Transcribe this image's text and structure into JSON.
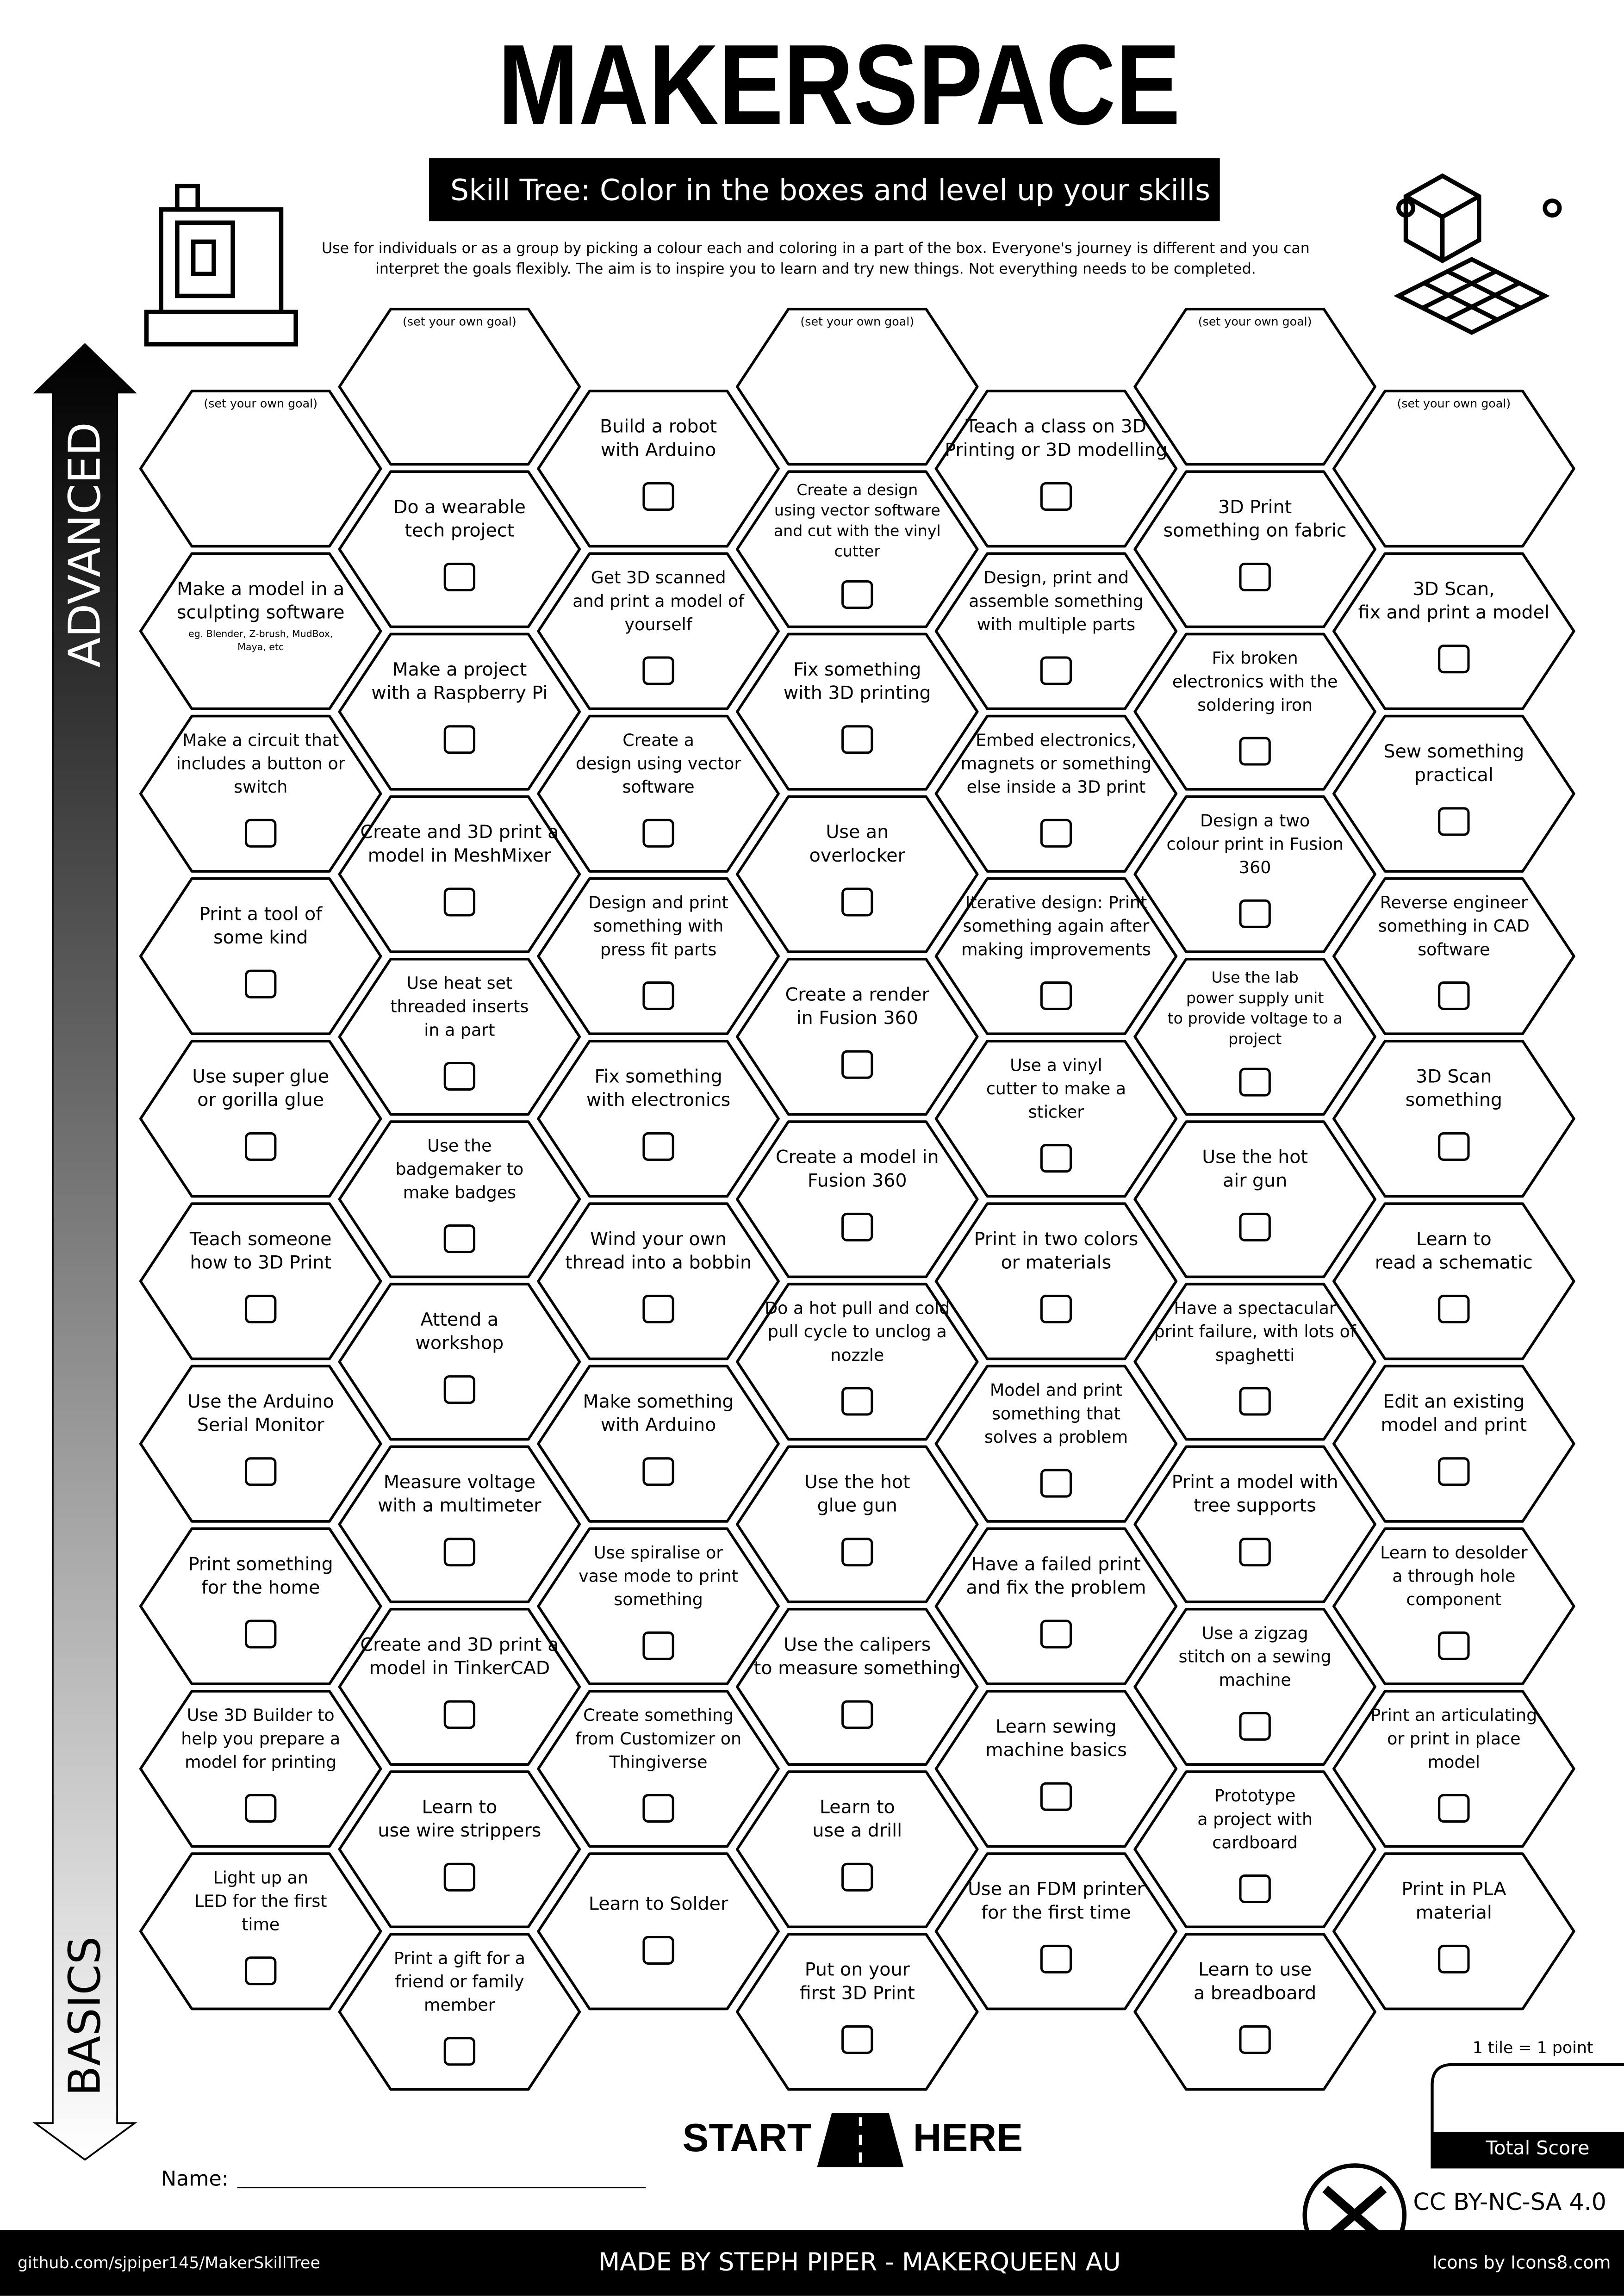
{
  "header": {
    "title": "MAKERSPACE",
    "subtitle": "Skill Tree:  Color in the boxes and level up your skills",
    "intro": [
      "Use for individuals or as a group by picking a colour each and coloring in a part of the box.  Everyone's journey is different and you can",
      "interpret the goals flexibly.  The aim is to inspire you to learn and try new things. Not everything needs to be completed."
    ]
  },
  "axis": {
    "top": "ADVANCED",
    "bottom": "BASICS"
  },
  "columns": [
    [
      {
        "note": [
          "(set your own goal)"
        ]
      },
      {
        "lines": [
          "Make a model in a",
          "sculpting software"
        ],
        "note": [
          "eg. Blender, Z-brush, MudBox,",
          "Maya, etc"
        ]
      },
      {
        "lines": [
          "Make a circuit that",
          "includes a button or",
          "switch"
        ]
      },
      {
        "lines": [
          "Print a tool of",
          "some kind"
        ]
      },
      {
        "lines": [
          "Use super glue",
          "or gorilla glue"
        ]
      },
      {
        "lines": [
          "Teach someone",
          "how to 3D Print"
        ]
      },
      {
        "lines": [
          "Use the Arduino",
          "Serial Monitor"
        ]
      },
      {
        "lines": [
          "Print something",
          "for the home"
        ]
      },
      {
        "lines": [
          "Use 3D Builder to",
          "help you prepare a",
          "model for printing"
        ]
      },
      {
        "lines": [
          "Light up an",
          "LED for the first",
          "time"
        ]
      }
    ],
    [
      {
        "note": [
          "(set your own goal)"
        ]
      },
      {
        "lines": [
          "Do a wearable",
          "tech project"
        ]
      },
      {
        "lines": [
          "Make a project",
          "with a Raspberry Pi"
        ]
      },
      {
        "lines": [
          "Create and 3D print a",
          "model in MeshMixer"
        ]
      },
      {
        "lines": [
          "Use heat set",
          "threaded inserts",
          "in a part"
        ]
      },
      {
        "lines": [
          "Use the",
          "badgemaker to",
          "make badges"
        ]
      },
      {
        "lines": [
          "Attend a",
          "workshop"
        ]
      },
      {
        "lines": [
          "Measure voltage",
          "with a multimeter"
        ]
      },
      {
        "lines": [
          "Create and 3D print a",
          "model in TinkerCAD"
        ]
      },
      {
        "lines": [
          "Learn to",
          "use wire strippers"
        ]
      },
      {
        "lines": [
          "Print a gift for a",
          "friend or family",
          "member"
        ]
      }
    ],
    [
      {
        "lines": [
          "Build a robot",
          "with Arduino"
        ]
      },
      {
        "lines": [
          "Get 3D scanned",
          "and print a model of",
          "yourself"
        ]
      },
      {
        "lines": [
          "Create a",
          "design  using vector",
          "software"
        ]
      },
      {
        "lines": [
          "Design and print",
          "something with",
          "press fit parts"
        ]
      },
      {
        "lines": [
          "Fix something",
          "with electronics"
        ]
      },
      {
        "lines": [
          "Wind your own",
          "thread into a bobbin"
        ]
      },
      {
        "lines": [
          "Make something",
          "with Arduino"
        ]
      },
      {
        "lines": [
          "Use spiralise or",
          "vase mode to print",
          "something"
        ]
      },
      {
        "lines": [
          "Create something",
          "from Customizer on",
          "Thingiverse"
        ]
      },
      {
        "lines": [
          "Learn to Solder"
        ]
      }
    ],
    [
      {
        "note": [
          "(set your own goal)"
        ]
      },
      {
        "lines": [
          "Create a  design",
          "using vector software",
          "and cut with the vinyl",
          "cutter"
        ]
      },
      {
        "lines": [
          "Fix something",
          "with 3D printing"
        ]
      },
      {
        "lines": [
          "Use an",
          "overlocker"
        ]
      },
      {
        "lines": [
          "Create a render",
          "in Fusion 360"
        ]
      },
      {
        "lines": [
          "Create a model in",
          "Fusion 360"
        ]
      },
      {
        "lines": [
          "Do a hot pull and cold",
          "pull cycle to unclog a",
          "nozzle"
        ]
      },
      {
        "lines": [
          "Use the hot",
          "glue gun"
        ]
      },
      {
        "lines": [
          "Use the calipers",
          "to measure something"
        ]
      },
      {
        "lines": [
          "Learn to",
          "use a drill"
        ]
      },
      {
        "lines": [
          "Put on your",
          "first 3D Print"
        ]
      }
    ],
    [
      {
        "lines": [
          "Teach a class on 3D",
          "Printing or 3D modelling"
        ]
      },
      {
        "lines": [
          "Design, print and",
          "assemble something",
          "with multiple parts"
        ]
      },
      {
        "lines": [
          "Embed electronics,",
          "magnets or something",
          "else inside a 3D print"
        ]
      },
      {
        "lines": [
          "Iterative design: Print",
          "something again after",
          "making improvements"
        ]
      },
      {
        "lines": [
          "Use a vinyl",
          "cutter to make a",
          "sticker"
        ]
      },
      {
        "lines": [
          "Print in two colors",
          "or materials"
        ]
      },
      {
        "lines": [
          "Model and print",
          "something that",
          "solves a problem"
        ]
      },
      {
        "lines": [
          "Have a failed print",
          "and fix the problem"
        ]
      },
      {
        "lines": [
          "Learn sewing",
          "machine basics"
        ]
      },
      {
        "lines": [
          "Use an FDM printer",
          "for the first time"
        ]
      }
    ],
    [
      {
        "note": [
          "(set your own goal)"
        ]
      },
      {
        "lines": [
          "3D Print",
          "something on fabric"
        ]
      },
      {
        "lines": [
          "Fix broken",
          "electronics with the",
          "soldering iron"
        ]
      },
      {
        "lines": [
          "Design a two",
          "colour print in Fusion",
          "360"
        ]
      },
      {
        "lines": [
          "Use the lab",
          "power supply unit",
          "to provide voltage to a",
          "project"
        ]
      },
      {
        "lines": [
          "Use the hot",
          "air gun"
        ]
      },
      {
        "lines": [
          "Have a spectacular",
          "print failure, with lots of",
          "spaghetti"
        ]
      },
      {
        "lines": [
          "Print a model with",
          "tree supports"
        ]
      },
      {
        "lines": [
          "Use a zigzag",
          "stitch on a sewing",
          "machine"
        ]
      },
      {
        "lines": [
          "Prototype",
          "a project with",
          "cardboard"
        ]
      },
      {
        "lines": [
          "Learn to use",
          "a breadboard"
        ]
      }
    ],
    [
      {
        "note": [
          "(set your own goal)"
        ]
      },
      {
        "lines": [
          "3D Scan,",
          "fix and print a model"
        ]
      },
      {
        "lines": [
          "Sew something",
          "practical"
        ]
      },
      {
        "lines": [
          "Reverse engineer",
          "something in CAD",
          "software"
        ]
      },
      {
        "lines": [
          "3D Scan",
          "something"
        ]
      },
      {
        "lines": [
          "Learn to",
          "read a schematic"
        ]
      },
      {
        "lines": [
          "Edit an existing",
          "model and print"
        ]
      },
      {
        "lines": [
          "Learn to desolder",
          "a through hole",
          "component"
        ]
      },
      {
        "lines": [
          "Print an articulating",
          "or print in place",
          "model"
        ]
      },
      {
        "lines": [
          "Print in PLA",
          "material"
        ]
      }
    ]
  ],
  "footer": {
    "name_label": "Name:",
    "start": "START",
    "here": "HERE",
    "score_note": "1 tile = 1 point",
    "score_label": "Total Score",
    "license": "CC BY-NC-SA 4.0",
    "repo": "github.com/sjpiper145/MakerSkillTree",
    "credit": "MADE BY STEPH PIPER  -  MAKERQUEEN AU",
    "icons": "Icons by Icons8.com"
  }
}
